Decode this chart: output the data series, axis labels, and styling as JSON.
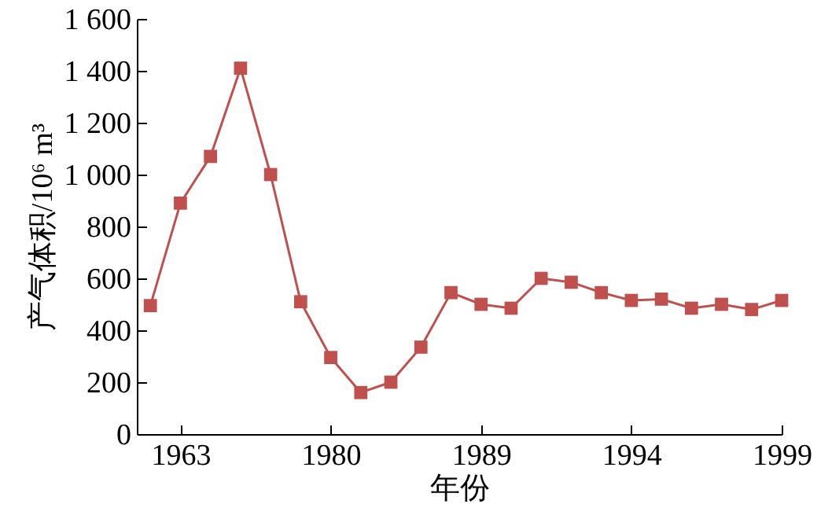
{
  "chart_data": {
    "type": "line",
    "xlabel": "年份",
    "ylabel": "产气体积/10⁶ m³",
    "categories": [
      null,
      "1963",
      null,
      null,
      null,
      null,
      "1980",
      null,
      null,
      null,
      null,
      "1989",
      null,
      null,
      null,
      null,
      "1994",
      null,
      null,
      null,
      null,
      "1999"
    ],
    "series": [
      {
        "color": "#c0504d",
        "values": [
          495,
          890,
          1070,
          1410,
          1000,
          510,
          295,
          160,
          200,
          335,
          545,
          500,
          485,
          600,
          585,
          545,
          515,
          520,
          485,
          500,
          480,
          515
        ]
      }
    ],
    "ylim": [
      0,
      1600
    ],
    "yticks": [
      0,
      200,
      400,
      600,
      800,
      {
        "value": 1000,
        "label": "1 000"
      },
      {
        "value": 1200,
        "label": "1 200"
      },
      {
        "value": 1400,
        "label": "1 400"
      },
      {
        "value": 1600,
        "label": "1 600"
      }
    ],
    "grid": false,
    "marker": "square",
    "line_style": "solid"
  }
}
